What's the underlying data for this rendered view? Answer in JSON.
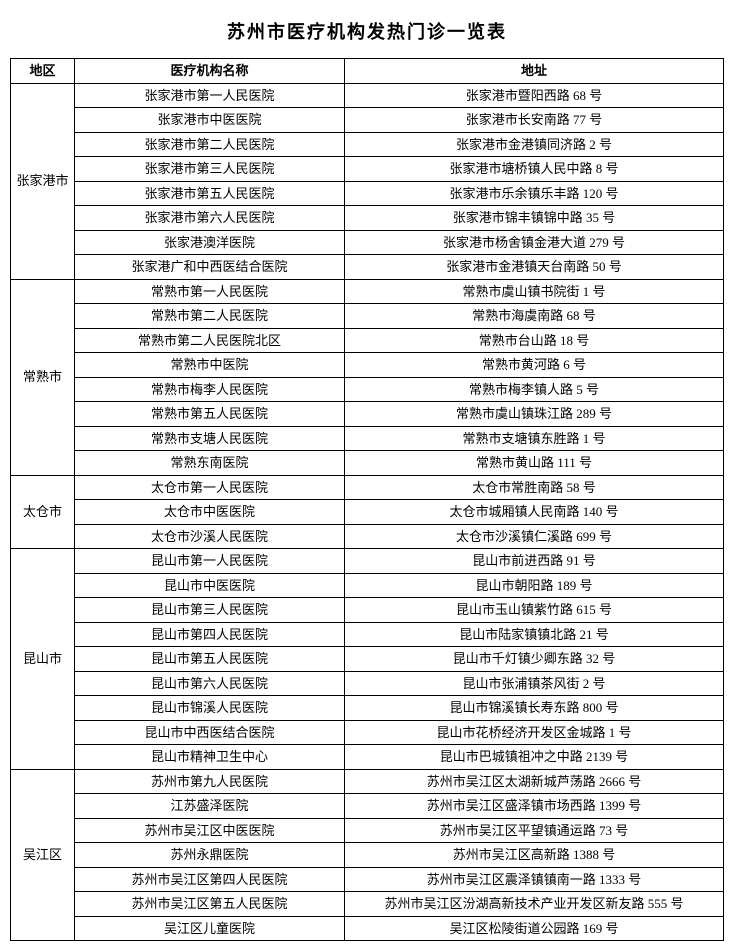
{
  "title": "苏州市医疗机构发热门诊一览表",
  "columns": [
    "地区",
    "医疗机构名称",
    "地址"
  ],
  "regions": [
    {
      "name": "张家港市",
      "rows": [
        [
          "张家港市第一人民医院",
          "张家港市暨阳西路 68 号"
        ],
        [
          "张家港市中医医院",
          "张家港市长安南路 77 号"
        ],
        [
          "张家港市第二人民医院",
          "张家港市金港镇同济路 2 号"
        ],
        [
          "张家港市第三人民医院",
          "张家港市塘桥镇人民中路 8 号"
        ],
        [
          "张家港市第五人民医院",
          "张家港市乐余镇乐丰路 120 号"
        ],
        [
          "张家港市第六人民医院",
          "张家港市锦丰镇锦中路 35 号"
        ],
        [
          "张家港澳洋医院",
          "张家港市杨舍镇金港大道 279 号"
        ],
        [
          "张家港广和中西医结合医院",
          "张家港市金港镇天台南路 50 号"
        ]
      ]
    },
    {
      "name": "常熟市",
      "rows": [
        [
          "常熟市第一人民医院",
          "常熟市虞山镇书院街 1 号"
        ],
        [
          "常熟市第二人民医院",
          "常熟市海虞南路 68 号"
        ],
        [
          "常熟市第二人民医院北区",
          "常熟市台山路 18 号"
        ],
        [
          "常熟市中医院",
          "常熟市黄河路 6 号"
        ],
        [
          "常熟市梅李人民医院",
          "常熟市梅李镇人路 5 号"
        ],
        [
          "常熟市第五人民医院",
          "常熟市虞山镇珠江路 289 号"
        ],
        [
          "常熟市支塘人民医院",
          "常熟市支塘镇东胜路 1 号"
        ],
        [
          "常熟东南医院",
          "常熟市黄山路 111 号"
        ]
      ]
    },
    {
      "name": "太仓市",
      "rows": [
        [
          "太仓市第一人民医院",
          "太仓市常胜南路 58 号"
        ],
        [
          "太仓市中医医院",
          "太仓市城厢镇人民南路 140 号"
        ],
        [
          "太仓市沙溪人民医院",
          "太仓市沙溪镇仁溪路 699 号"
        ]
      ]
    },
    {
      "name": "昆山市",
      "rows": [
        [
          "昆山市第一人民医院",
          "昆山市前进西路 91 号"
        ],
        [
          "昆山市中医医院",
          "昆山市朝阳路 189 号"
        ],
        [
          "昆山市第三人民医院",
          "昆山市玉山镇紫竹路 615 号"
        ],
        [
          "昆山市第四人民医院",
          "昆山市陆家镇镇北路 21 号"
        ],
        [
          "昆山市第五人民医院",
          "昆山市千灯镇少卿东路 32 号"
        ],
        [
          "昆山市第六人民医院",
          "昆山市张浦镇茶风街 2 号"
        ],
        [
          "昆山市锦溪人民医院",
          "昆山市锦溪镇长寿东路 800 号"
        ],
        [
          "昆山市中西医结合医院",
          "昆山市花桥经济开发区金城路 1 号"
        ],
        [
          "昆山市精神卫生中心",
          "昆山市巴城镇祖冲之中路 2139 号"
        ]
      ]
    },
    {
      "name": "吴江区",
      "rows": [
        [
          "苏州市第九人民医院",
          "苏州市吴江区太湖新城芦荡路 2666 号"
        ],
        [
          "江苏盛泽医院",
          "苏州市吴江区盛泽镇市场西路 1399 号"
        ],
        [
          "苏州市吴江区中医医院",
          "苏州市吴江区平望镇通运路 73 号"
        ],
        [
          "苏州永鼎医院",
          "苏州市吴江区高新路 1388 号"
        ],
        [
          "苏州市吴江区第四人民医院",
          "苏州市吴江区震泽镇镇南一路 1333 号"
        ],
        [
          "苏州市吴江区第五人民医院",
          "苏州市吴江区汾湖高新技术产业开发区新友路 555 号"
        ],
        [
          "吴江区儿童医院",
          "吴江区松陵街道公园路 169 号"
        ]
      ]
    }
  ]
}
